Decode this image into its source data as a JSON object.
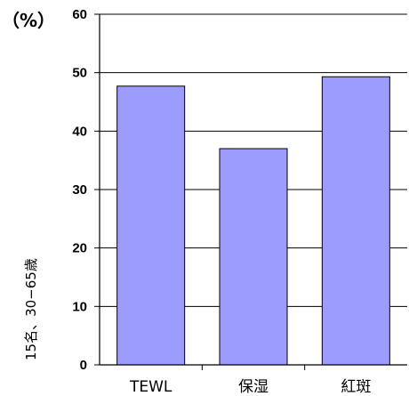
{
  "chart_data": {
    "type": "bar",
    "categories": [
      "TEWL",
      "保湿",
      "紅斑"
    ],
    "values": [
      47.7,
      37.0,
      49.3
    ],
    "ylim": [
      0,
      60
    ],
    "yticks": [
      0,
      10,
      20,
      30,
      40,
      50,
      60
    ],
    "ytick_labels": [
      "0",
      "10",
      "20",
      "30",
      "40",
      "50",
      "60"
    ],
    "unit_label": "（%）",
    "side_note": "15名、30−65歳",
    "grid": true,
    "legend": "none",
    "colors": {
      "bar_fill": "#9c9cff",
      "bar_stroke": "#000000",
      "axis": "#000000",
      "grid": "#000000",
      "background": "#ffffff"
    }
  }
}
